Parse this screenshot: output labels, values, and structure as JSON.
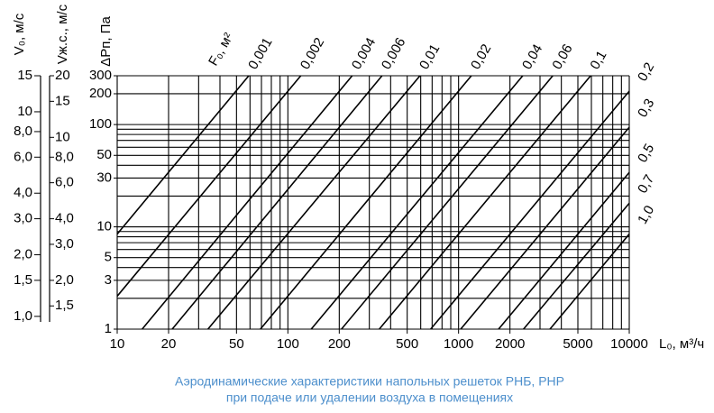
{
  "chart_data": {
    "type": "nomogram",
    "x_label": "L₀, м³/ч",
    "y_label": "ΔPп, Па",
    "series_label": "F₀, м²",
    "caption": [
      "Аэродинамические характеристики напольных решеток РНБ, РНР",
      "при подаче или удалении воздуха в помещениях"
    ],
    "log_x": true,
    "log_y": true,
    "xlim": [
      10,
      10000
    ],
    "ylim": [
      1,
      300
    ],
    "xticks": [
      10,
      20,
      50,
      100,
      200,
      500,
      1000,
      2000,
      5000,
      10000
    ],
    "yticks": [
      1,
      3,
      5,
      10,
      30,
      50,
      100,
      200,
      300
    ],
    "xgrid": [
      10,
      20,
      30,
      40,
      50,
      60,
      70,
      80,
      90,
      100,
      200,
      300,
      400,
      500,
      600,
      700,
      800,
      900,
      1000,
      2000,
      3000,
      4000,
      5000,
      6000,
      7000,
      8000,
      9000,
      10000
    ],
    "ygrid": [
      1,
      2,
      3,
      4,
      5,
      6,
      7,
      8,
      9,
      10,
      20,
      30,
      40,
      50,
      60,
      70,
      80,
      90,
      100,
      200,
      300
    ],
    "color": "#000000",
    "series": [
      {
        "name": "0,001",
        "x": [
          10,
          59
        ],
        "values": [
          8.5,
          300
        ]
      },
      {
        "name": "0,002",
        "x": [
          10,
          119
        ],
        "values": [
          2.1,
          300
        ]
      },
      {
        "name": "0,004",
        "x": [
          14,
          238
        ],
        "values": [
          1,
          300
        ]
      },
      {
        "name": "0,006",
        "x": [
          21,
          356
        ],
        "values": [
          1,
          300
        ]
      },
      {
        "name": "0,01",
        "x": [
          34,
          594
        ],
        "values": [
          1,
          300
        ]
      },
      {
        "name": "0,02",
        "x": [
          69,
          1188
        ],
        "values": [
          1,
          300
        ]
      },
      {
        "name": "0,04",
        "x": [
          137,
          2376
        ],
        "values": [
          1,
          300
        ]
      },
      {
        "name": "0,06",
        "x": [
          206,
          3564
        ],
        "values": [
          1,
          300
        ]
      },
      {
        "name": "0,1",
        "x": [
          343,
          5940
        ],
        "values": [
          1,
          300
        ]
      },
      {
        "name": "0,2",
        "x": [
          686,
          10000
        ],
        "values": [
          1,
          212
        ]
      },
      {
        "name": "0,3",
        "x": [
          1029,
          10000
        ],
        "values": [
          1,
          94
        ]
      },
      {
        "name": "0,5",
        "x": [
          1715,
          10000
        ],
        "values": [
          1,
          34
        ]
      },
      {
        "name": "0,7",
        "x": [
          2401,
          10000
        ],
        "values": [
          1,
          17
        ]
      },
      {
        "name": "1,0",
        "x": [
          3430,
          10000
        ],
        "values": [
          1,
          8.5
        ]
      }
    ],
    "left_axes": [
      {
        "label": "V₀, м/с",
        "lim": [
          0.866,
          15
        ],
        "ticks": [
          {
            "value": 1,
            "label": "1,0"
          },
          {
            "value": 1.5,
            "label": "1,5"
          },
          {
            "value": 2,
            "label": "2,0"
          },
          {
            "value": 3,
            "label": "3,0"
          },
          {
            "value": 4,
            "label": "4,0"
          },
          {
            "value": 6,
            "label": "6,0"
          },
          {
            "value": 8,
            "label": "8,0"
          },
          10,
          15
        ]
      },
      {
        "label": "Vж.с., м/с",
        "lim": [
          1.155,
          20
        ],
        "ticks": [
          {
            "value": 1.5,
            "label": "1,5"
          },
          {
            "value": 2,
            "label": "2,0"
          },
          {
            "value": 3,
            "label": "3,0"
          },
          {
            "value": 4,
            "label": "4,0"
          },
          {
            "value": 6,
            "label": "6,0"
          },
          {
            "value": 8,
            "label": "8,0"
          },
          10,
          15,
          20
        ]
      }
    ]
  }
}
